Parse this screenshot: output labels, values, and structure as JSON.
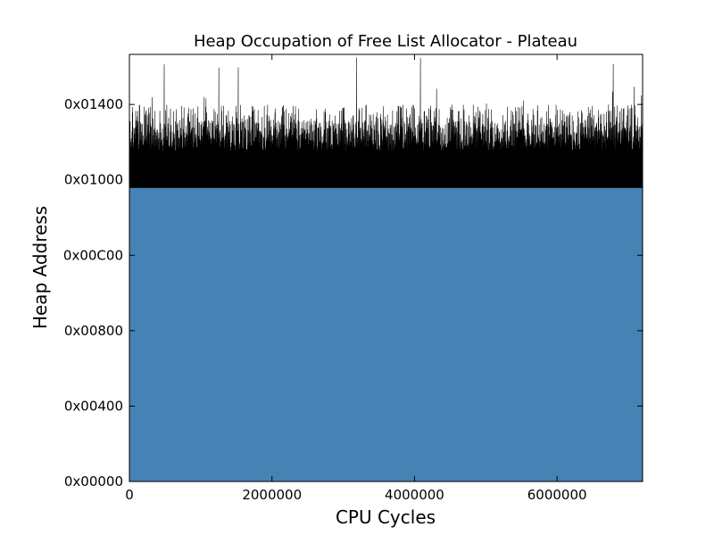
{
  "chart_data": {
    "type": "area",
    "title": "Heap Occupation of Free List Allocator - Plateau",
    "xlabel": "CPU Cycles",
    "ylabel": "Heap Address",
    "xlim": [
      0,
      7200000
    ],
    "ylim": [
      0,
      5800
    ],
    "x_ticks": [
      {
        "value": 0,
        "label": "0"
      },
      {
        "value": 2000000,
        "label": "2000000"
      },
      {
        "value": 4000000,
        "label": "4000000"
      },
      {
        "value": 6000000,
        "label": "6000000"
      }
    ],
    "y_ticks": [
      {
        "value": 0,
        "label": "0x00000"
      },
      {
        "value": 1024,
        "label": "0x00400"
      },
      {
        "value": 2048,
        "label": "0x00800"
      },
      {
        "value": 3072,
        "label": "0x00C00"
      },
      {
        "value": 4096,
        "label": "0x01000"
      },
      {
        "value": 5120,
        "label": "0x01400"
      }
    ],
    "grid": false,
    "series": [
      {
        "role": "occupied-base",
        "fill_color": "#4682b4",
        "level": 3990
      },
      {
        "role": "fluctuating-top",
        "color": "#000000",
        "band_min": 3990,
        "band_typical_max": 4900,
        "band_peak_max": 5800
      }
    ]
  }
}
